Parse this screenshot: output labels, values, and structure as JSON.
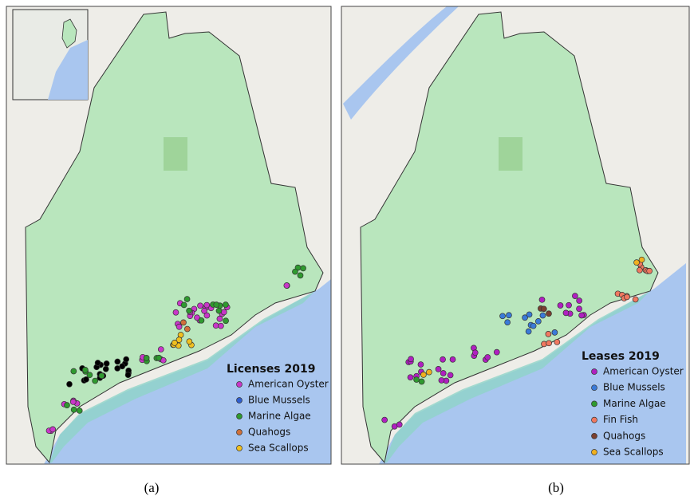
{
  "panels": [
    {
      "legend": {
        "title": "Licenses 2019",
        "items": [
          {
            "name": "American Oyster",
            "color": "#c837c8"
          },
          {
            "name": "Blue Mussels",
            "color": "#2f5fd0"
          },
          {
            "name": "Marine Algae",
            "color": "#2f9a2f"
          },
          {
            "name": "Quahogs",
            "color": "#d0703a"
          },
          {
            "name": "Sea Scallops",
            "color": "#f0c020"
          }
        ]
      },
      "caption": "(a)"
    },
    {
      "legend": {
        "title": "Leases 2019",
        "items": [
          {
            "name": "American Oyster",
            "color": "#b020c0"
          },
          {
            "name": "Blue Mussels",
            "color": "#3a7ad8"
          },
          {
            "name": "Marine Algae",
            "color": "#2f9a2f"
          },
          {
            "name": "Fin Fish",
            "color": "#f07860"
          },
          {
            "name": "Quahogs",
            "color": "#7a4030"
          },
          {
            "name": "Sea Scallops",
            "color": "#f0b020"
          }
        ]
      },
      "caption": "(b)"
    }
  ]
}
